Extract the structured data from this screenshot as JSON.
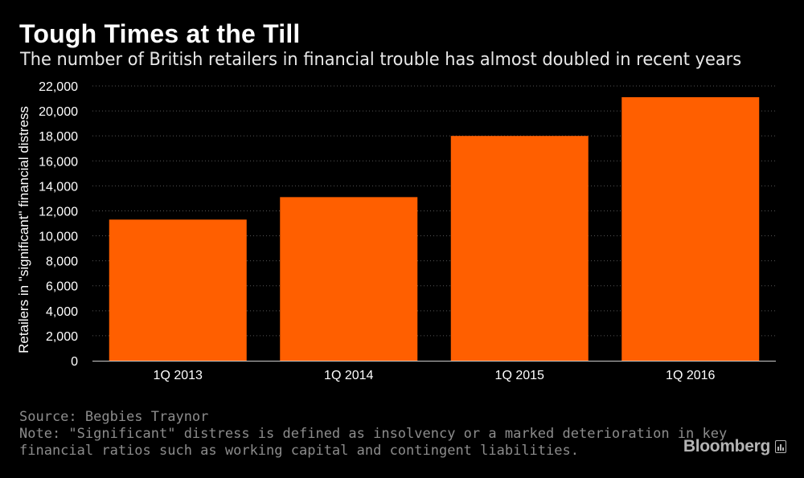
{
  "title": "Tough Times at the Till",
  "subtitle": "The number of British retailers in financial trouble has almost doubled in recent years",
  "colors": {
    "background": "#000000",
    "bar": "#ff5f00",
    "grid": "#555555",
    "axis_text": "#ffffff",
    "footer_text": "#8c8c8c"
  },
  "chart_data": {
    "type": "bar",
    "categories": [
      "1Q 2013",
      "1Q 2014",
      "1Q 2015",
      "1Q 2016"
    ],
    "values": [
      11300,
      13100,
      18000,
      21100
    ],
    "ylabel": "Retailers in \"significant\" financial distress",
    "xlabel": "",
    "ylim": [
      0,
      22000
    ],
    "yticks": [
      0,
      2000,
      4000,
      6000,
      8000,
      10000,
      12000,
      14000,
      16000,
      18000,
      20000,
      22000
    ],
    "ytick_labels": [
      "0",
      "2,000",
      "4,000",
      "6,000",
      "8,000",
      "10,000",
      "12,000",
      "14,000",
      "16,000",
      "18,000",
      "20,000",
      "22,000"
    ],
    "grid": true,
    "legend": "none"
  },
  "footer": {
    "source": "Source: Begbies Traynor",
    "note_line1": "Note: \"Significant\" distress is defined as insolvency or a marked deterioration in key",
    "note_line2": "financial ratios such as working capital and contingent liabilities."
  },
  "brand": {
    "name": "Bloomberg",
    "icon": "bloomberg-chart-icon"
  }
}
